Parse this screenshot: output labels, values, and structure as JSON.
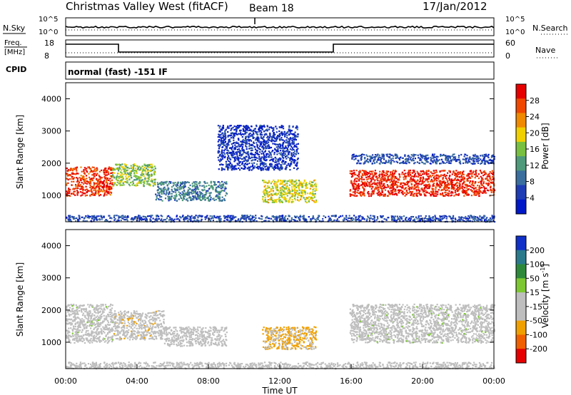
{
  "header": {
    "station": "Christmas Valley West (fitACF)",
    "beam": "Beam 18",
    "date": "17/Jan/2012"
  },
  "top_panels": {
    "nsky_label": "N.Sky",
    "nsky_ticks": [
      "10^5",
      "10^0"
    ],
    "nsearch_label": "N.Search",
    "freq_label_1": "Freq.",
    "freq_label_2": "[MHz]",
    "freq_ticks": [
      "18",
      "8"
    ],
    "nave_label": "Nave",
    "nave_ticks": [
      "60",
      "0"
    ],
    "cpid_label": "CPID",
    "cpid_text": "normal (fast) -151 IF"
  },
  "colors": {
    "power_scale": [
      "#0018c8",
      "#1e3cb4",
      "#3a6e9e",
      "#4e9a7a",
      "#78c040",
      "#f0d000",
      "#f08a00",
      "#f04800",
      "#e60000"
    ],
    "velocity_scale": [
      "#1030c8",
      "#2a7a8c",
      "#2e8a3a",
      "#7dc832",
      "#bebebe",
      "#bebebe",
      "#f0a000",
      "#f06000",
      "#e60000"
    ]
  },
  "chart_data": [
    {
      "type": "heatmap",
      "title": "Power",
      "xlabel": "",
      "ylabel": "Slant Range [km]",
      "x_ticks": [
        "00:00",
        "04:00",
        "08:00",
        "12:00",
        "16:00",
        "20:00",
        "00:00"
      ],
      "x_range_hours": [
        0,
        24
      ],
      "y_ticks": [
        "1000",
        "2000",
        "3000",
        "4000"
      ],
      "y_range_km": [
        180,
        4500
      ],
      "colorbar_label": "Power [dB]",
      "colorbar_ticks": [
        "4",
        "8",
        "12",
        "16",
        "20",
        "24",
        "28"
      ],
      "colorbar_range": [
        0,
        32
      ],
      "regions": [
        {
          "t0": 0.0,
          "t1": 2.6,
          "r0": 1000,
          "r1": 1900,
          "v": 28
        },
        {
          "t0": 2.6,
          "t1": 5.0,
          "r0": 1300,
          "r1": 2000,
          "v": 16
        },
        {
          "t0": 5.0,
          "t1": 9.0,
          "r0": 850,
          "r1": 1450,
          "v": 10
        },
        {
          "t0": 11.0,
          "t1": 14.0,
          "r0": 800,
          "r1": 1500,
          "v": 18
        },
        {
          "t0": 15.9,
          "t1": 24.0,
          "r0": 1000,
          "r1": 1800,
          "v": 29
        },
        {
          "t0": 16.0,
          "t1": 24.0,
          "r0": 2000,
          "r1": 2300,
          "v": 6
        },
        {
          "t0": 8.5,
          "t1": 13.0,
          "r0": 1800,
          "r1": 3200,
          "v": 4
        },
        {
          "t0": 0.0,
          "t1": 24.0,
          "r0": 200,
          "r1": 400,
          "v": 6
        }
      ]
    },
    {
      "type": "heatmap",
      "title": "Velocity",
      "xlabel": "Time UT",
      "ylabel": "Slant Range [km]",
      "x_ticks": [
        "00:00",
        "04:00",
        "08:00",
        "12:00",
        "16:00",
        "20:00",
        "00:00"
      ],
      "x_range_hours": [
        0,
        24
      ],
      "y_ticks": [
        "1000",
        "2000",
        "3000",
        "4000"
      ],
      "y_range_km": [
        180,
        4500
      ],
      "colorbar_label": "Velocity [m s",
      "colorbar_label_sup": "-1",
      "colorbar_label_end": "]",
      "colorbar_ticks": [
        "200",
        "100",
        "50",
        "15",
        "-15",
        "-50",
        "-100",
        "-200"
      ],
      "colorbar_range": [
        -250,
        250
      ],
      "regions": [
        {
          "t0": 0.0,
          "t1": 2.6,
          "r0": 1000,
          "r1": 2200,
          "v": 0
        },
        {
          "t0": 2.6,
          "t1": 5.5,
          "r0": 1100,
          "r1": 2000,
          "v": -60
        },
        {
          "t0": 5.5,
          "t1": 9.0,
          "r0": 900,
          "r1": 1500,
          "v": -30
        },
        {
          "t0": 11.0,
          "t1": 14.0,
          "r0": 800,
          "r1": 1500,
          "v": -90
        },
        {
          "t0": 15.9,
          "t1": 24.0,
          "r0": 1000,
          "r1": 2200,
          "v": 0
        },
        {
          "t0": 0.0,
          "t1": 24.0,
          "r0": 200,
          "r1": 400,
          "v": -40
        }
      ]
    }
  ]
}
